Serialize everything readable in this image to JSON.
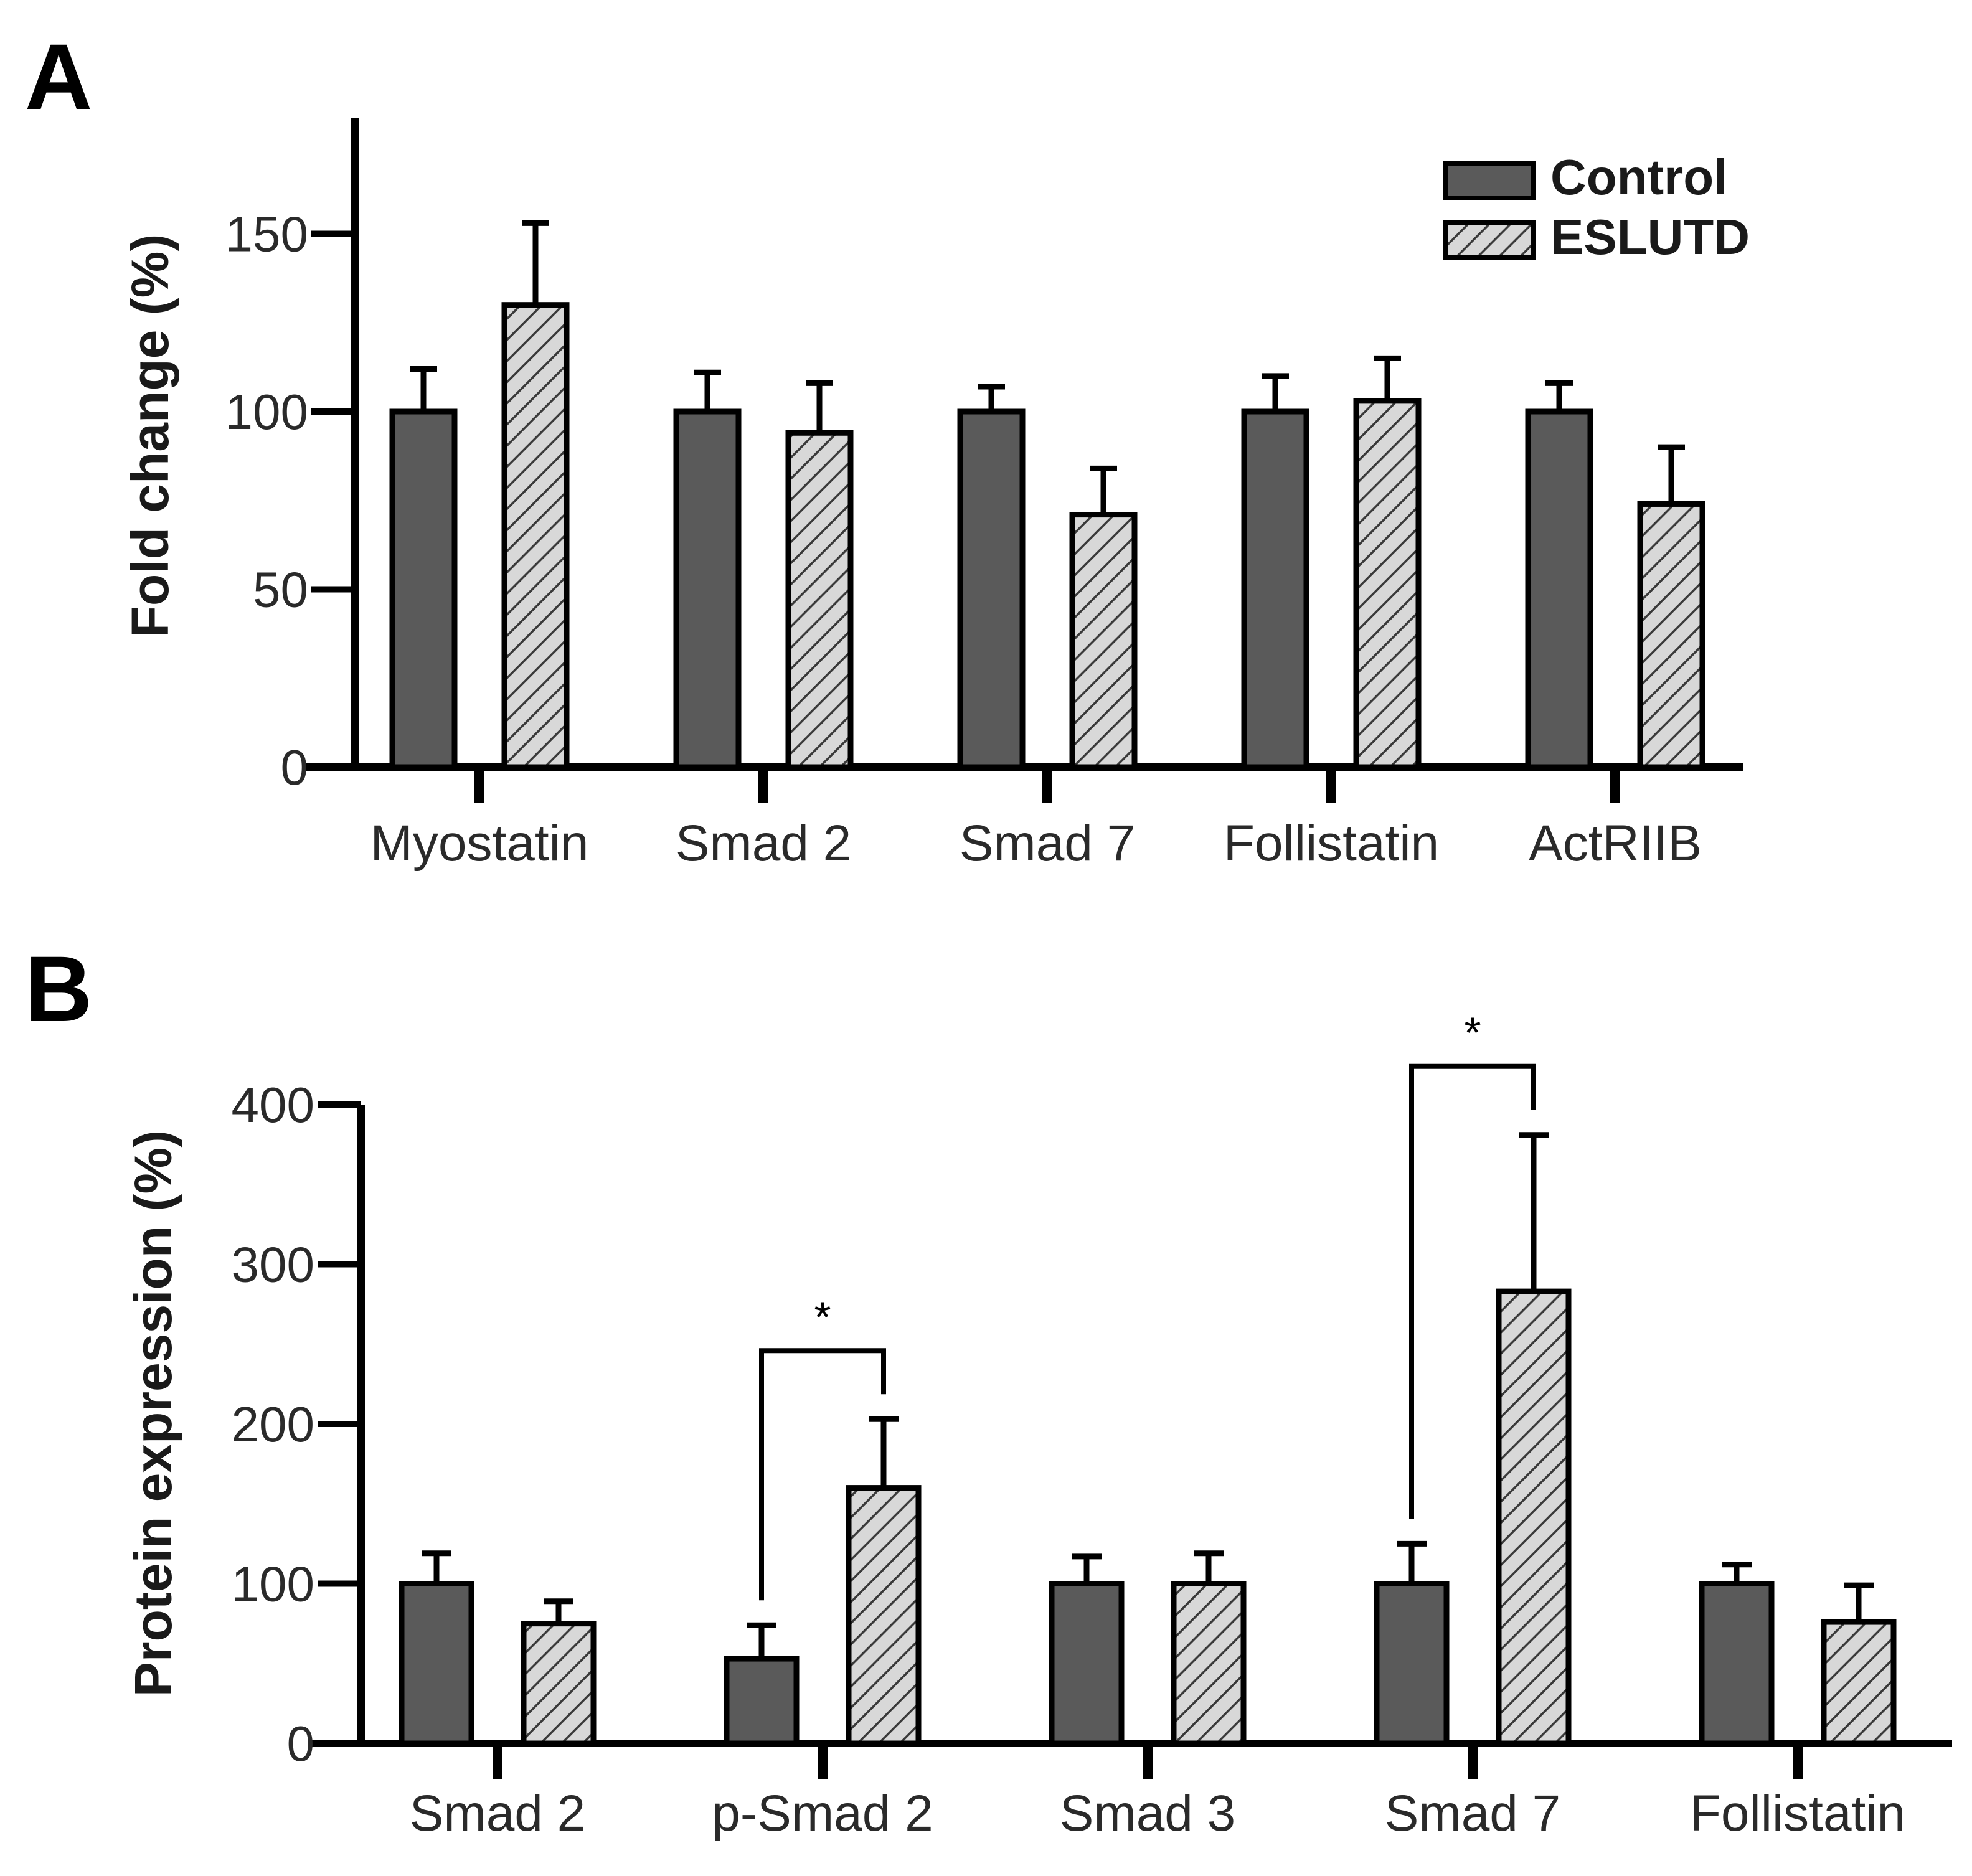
{
  "colors": {
    "control_fill": "#5a5a5a",
    "eslutd_fill": "#d8d8d8",
    "eslutd_hatch": "#3a3a3a",
    "axis": "#000000"
  },
  "legend": {
    "control": "Control",
    "eslutd": "ESLUTD",
    "placement": "top-right"
  },
  "chart_data": [
    {
      "panel": "A",
      "type": "bar",
      "ylabel": "Fold change (%)",
      "xlabel": "",
      "ylim": [
        0,
        180
      ],
      "yticks": [
        "0",
        "50",
        "100",
        "150"
      ],
      "categories": [
        "Myostatin",
        "Smad 2",
        "Smad 7",
        "Follistatin",
        "ActRIIB"
      ],
      "series": [
        {
          "name": "Control",
          "values": [
            100,
            100,
            100,
            100,
            100
          ],
          "errors": [
            12,
            11,
            7,
            10,
            8
          ]
        },
        {
          "name": "ESLUTD",
          "values": [
            130,
            94,
            71,
            103,
            74
          ],
          "errors": [
            23,
            14,
            13,
            12,
            16
          ]
        }
      ],
      "significance": []
    },
    {
      "panel": "B",
      "type": "bar",
      "ylabel": "Protein expression (%)",
      "xlabel": "",
      "ylim": [
        0,
        400
      ],
      "yticks": [
        "0",
        "100",
        "200",
        "300",
        "400"
      ],
      "categories": [
        "Smad 2",
        "p-Smad 2",
        "Smad 3",
        "Smad 7",
        "Follistatin"
      ],
      "series": [
        {
          "name": "Control",
          "values": [
            100,
            53,
            100,
            100,
            100
          ],
          "errors": [
            19,
            21,
            17,
            25,
            12
          ]
        },
        {
          "name": "ESLUTD",
          "values": [
            75,
            160,
            100,
            283,
            76
          ],
          "errors": [
            14,
            43,
            19,
            98,
            23
          ]
        }
      ],
      "significance": [
        {
          "category": "p-Smad 2",
          "label": "*"
        },
        {
          "category": "Smad 7",
          "label": "*"
        }
      ]
    }
  ]
}
